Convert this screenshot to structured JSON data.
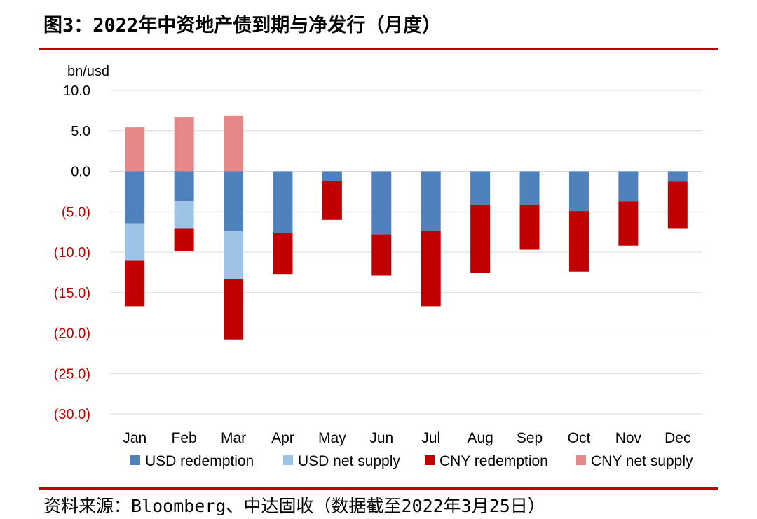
{
  "header": {
    "title": "图3：2022年中资地产债到期与净发行（月度）"
  },
  "footer": {
    "source": "资料来源：Bloomberg、中达固收（数据截至2022年3月25日）"
  },
  "colors": {
    "usd_redemption": "#4f81bd",
    "usd_net_supply": "#9dc3e6",
    "cny_redemption": "#c00000",
    "cny_net_supply": "#e6878a",
    "negative_tick": "#c00000",
    "rule": "#c00000",
    "grid": "#d9d9d9"
  },
  "chart_data": {
    "type": "bar",
    "stacked": true,
    "unit_label": "bn/usd",
    "categories": [
      "Jan",
      "Feb",
      "Mar",
      "Apr",
      "May",
      "Jun",
      "Jul",
      "Aug",
      "Sep",
      "Oct",
      "Nov",
      "Dec"
    ],
    "series": [
      {
        "name": "USD redemption",
        "values": [
          -6.5,
          -3.7,
          -7.4,
          -7.6,
          -1.2,
          -7.8,
          -7.4,
          -4.1,
          -4.1,
          -4.9,
          -3.7,
          -1.3
        ]
      },
      {
        "name": "USD net supply",
        "values": [
          -4.5,
          -3.4,
          -5.9,
          0,
          0,
          0,
          0,
          0,
          0,
          0,
          0,
          0
        ]
      },
      {
        "name": "CNY redemption",
        "values": [
          -5.7,
          -2.8,
          -7.5,
          -5.1,
          -4.8,
          -5.1,
          -9.3,
          -8.5,
          -5.6,
          -7.5,
          -5.5,
          -5.8
        ]
      },
      {
        "name": "CNY net supply",
        "values": [
          5.4,
          6.7,
          6.9,
          0,
          0,
          0,
          0,
          0,
          0,
          0,
          0,
          0
        ]
      }
    ],
    "ylim": [
      -30,
      10
    ],
    "yticks": [
      10,
      5,
      0,
      -5,
      -10,
      -15,
      -20,
      -25,
      -30
    ],
    "ytick_labels": [
      "10.0",
      "5.0",
      "0.0",
      "(5.0)",
      "(10.0)",
      "(15.0)",
      "(20.0)",
      "(25.0)",
      "(30.0)"
    ],
    "grid": true,
    "legend": "bottom"
  }
}
